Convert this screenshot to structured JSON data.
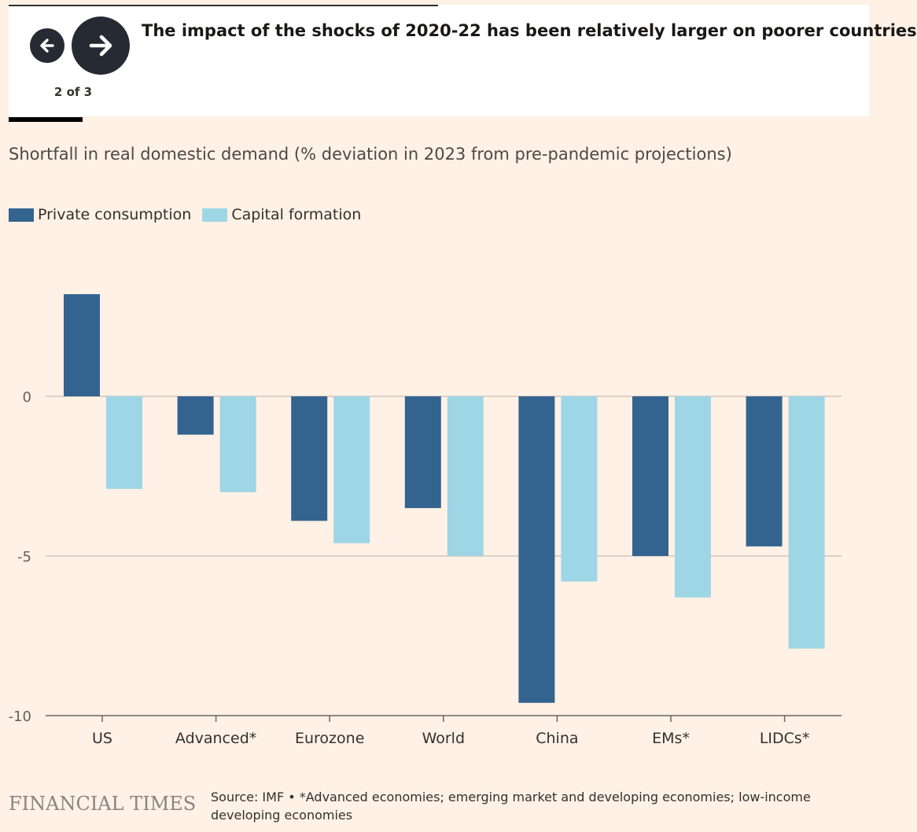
{
  "header": {
    "headline": "The impact of the shocks of 2020-22 has been relatively larger on poorer countries",
    "counter": "2 of 3",
    "prev_icon": "arrow-left-icon",
    "next_icon": "arrow-right-icon"
  },
  "colors": {
    "private_consumption": "#33648f",
    "capital_formation": "#9ed6e5",
    "gridline": "#c7bdb3",
    "background": "#fff1e5"
  },
  "chart_data": {
    "type": "bar",
    "subtitle": "Shortfall in real domestic demand (% deviation in 2023 from pre-pandemic projections)",
    "categories": [
      "US",
      "Advanced*",
      "Eurozone",
      "World",
      "China",
      "EMs*",
      "LIDCs*"
    ],
    "series": [
      {
        "name": "Private consumption",
        "values": [
          3.2,
          -1.2,
          -3.9,
          -3.5,
          -9.6,
          -5.0,
          -4.7
        ]
      },
      {
        "name": "Capital formation",
        "values": [
          -2.9,
          -3.0,
          -4.6,
          -5.0,
          -5.8,
          -6.3,
          -7.9
        ]
      }
    ],
    "yticks": [
      0,
      -5,
      -10
    ],
    "ytick_labels": [
      "0",
      "-5",
      "-10"
    ],
    "ylim": [
      -10,
      5
    ],
    "grid": true,
    "legend_position": "top-left"
  },
  "footer": {
    "logo": "FINANCIAL TIMES",
    "source": "Source: IMF • *Advanced economies; emerging market and developing economies; low-income developing economies"
  }
}
